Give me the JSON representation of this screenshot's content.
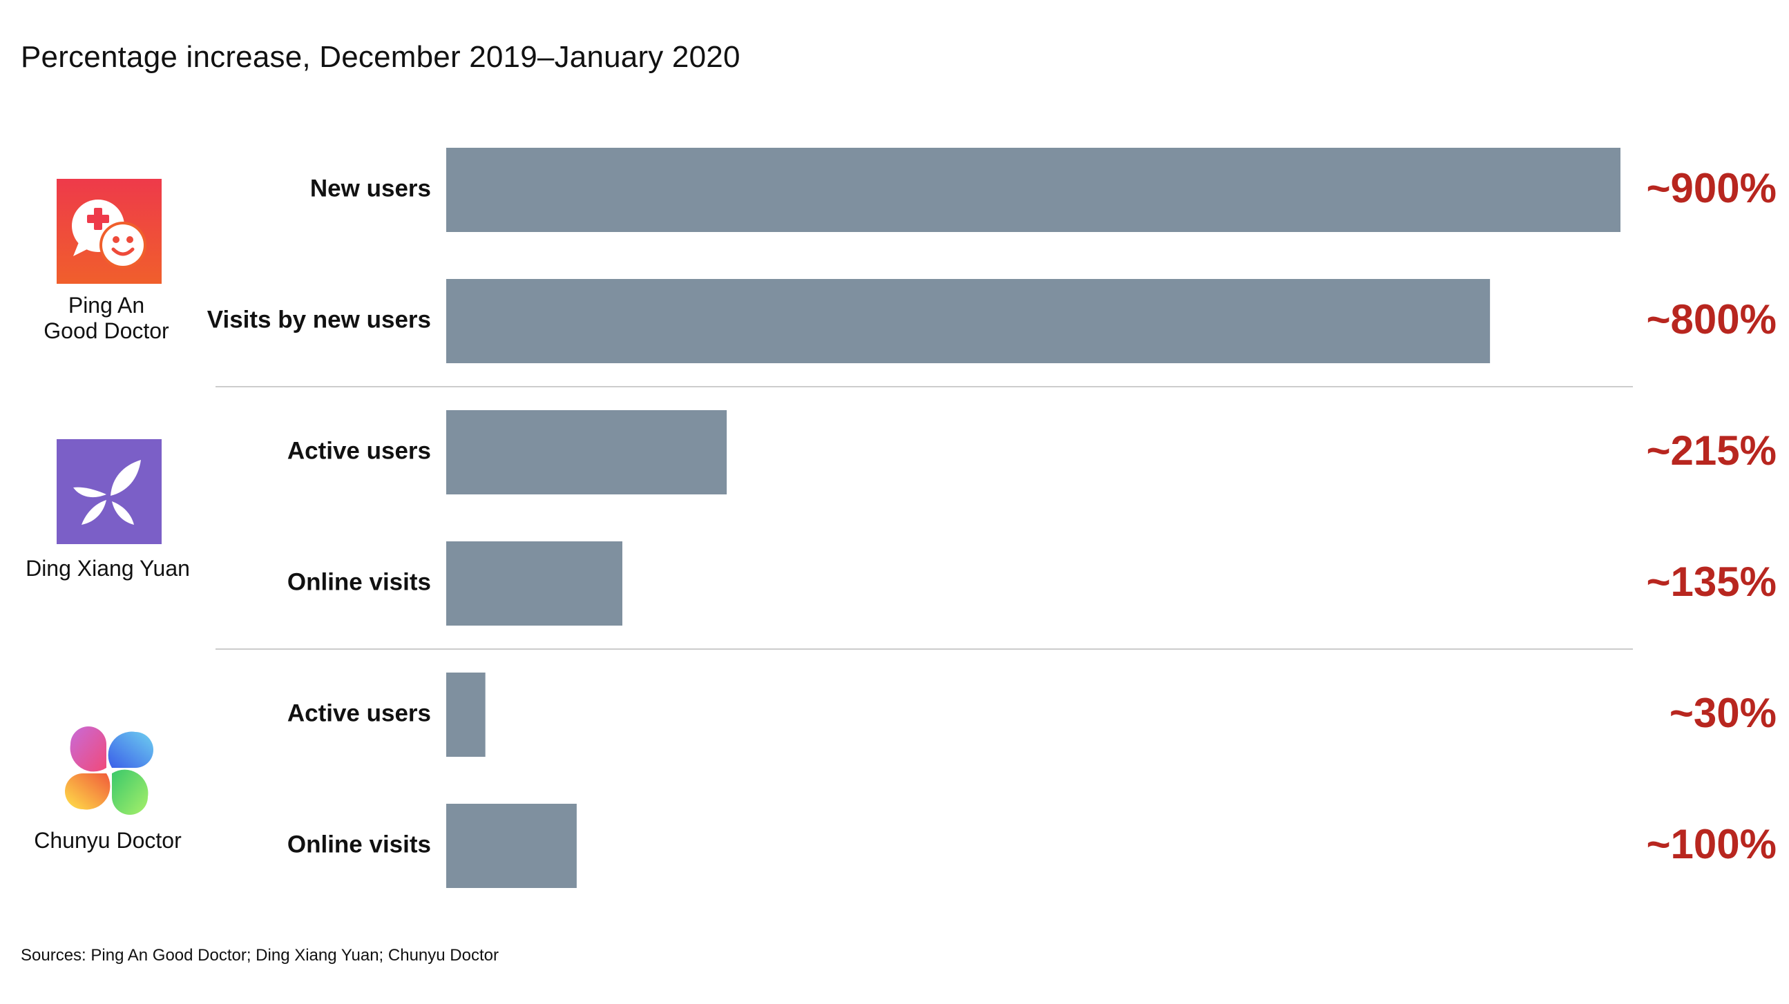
{
  "title": "Percentage increase, December 2019–January 2020",
  "source": "Sources: Ping An Good Doctor; Ding Xiang Yuan; Chunyu Doctor",
  "colors": {
    "bar": "#7f909f",
    "value_label": "#b8261f",
    "divider": "#cccccc",
    "text": "#111111"
  },
  "groups": [
    {
      "name_line1": "Ping An",
      "name_line2": "Good Doctor",
      "icon": "chat-bubbles-smile-icon"
    },
    {
      "name_line1": "Ding Xiang Yuan",
      "icon": "leaf-butterfly-icon"
    },
    {
      "name_line1": "Chunyu Doctor",
      "icon": "four-petal-flower-icon"
    }
  ],
  "chart_data": {
    "type": "bar",
    "orientation": "horizontal",
    "title": "Percentage increase, December 2019–January 2020",
    "unit": "%",
    "categories": [
      "New users",
      "Visits by new users",
      "Active users",
      "Online visits",
      "Active users",
      "Online visits"
    ],
    "group_names": [
      "Ping An Good Doctor",
      "Ping An Good Doctor",
      "Ding Xiang Yuan",
      "Ding Xiang Yuan",
      "Chunyu Doctor",
      "Chunyu Doctor"
    ],
    "values": [
      900,
      800,
      215,
      135,
      30,
      100
    ],
    "value_labels": [
      "~900%",
      "~800%",
      "~215%",
      "~135%",
      "~30%",
      "~100%"
    ],
    "xlim": [
      0,
      900
    ],
    "grid": false,
    "legend": "none"
  }
}
